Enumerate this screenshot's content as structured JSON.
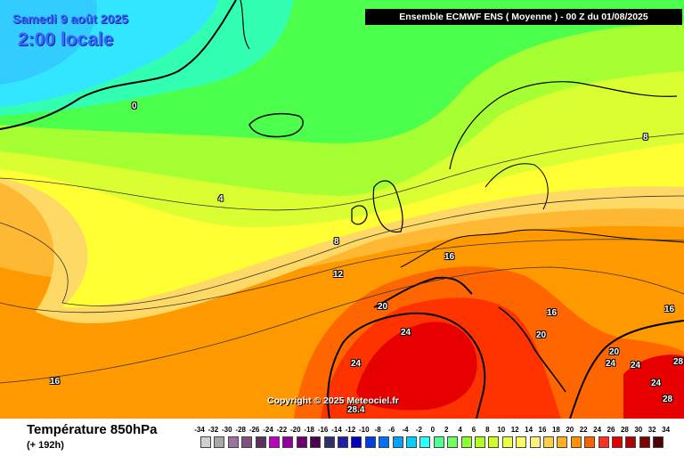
{
  "header": {
    "date": "Samedi 9 août 2025",
    "local_time": "2:00 locale",
    "model_run": "Ensemble ECMWF ENS  ( Moyenne )  -  00 Z du 01/08/2025"
  },
  "copyright": "Copyright © 2025 Meteociel.fr",
  "footer": {
    "variable": "Température 850hPa",
    "lead_time": "(+ 192h)"
  },
  "isotherm_labels": [
    "0",
    "4",
    "8",
    "12",
    "16",
    "16",
    "16",
    "16",
    "20",
    "20",
    "20",
    "24",
    "24",
    "24",
    "24",
    "24",
    "28",
    "28",
    "28.4",
    "8"
  ],
  "legend": {
    "ticks": [
      "-34",
      "-32",
      "-30",
      "-28",
      "-26",
      "-24",
      "-22",
      "-20",
      "-18",
      "-16",
      "-14",
      "-12",
      "-10",
      "-8",
      "-6",
      "-4",
      "-2",
      "0",
      "2",
      "4",
      "6",
      "8",
      "10",
      "12",
      "14",
      "16",
      "18",
      "20",
      "22",
      "24",
      "26",
      "28",
      "30",
      "32",
      "34"
    ],
    "colors": [
      "#d0d0d0",
      "#a8a8a8",
      "#a070a0",
      "#805080",
      "#603060",
      "#c000c0",
      "#9000a0",
      "#700070",
      "#500050",
      "#303070",
      "#2020a0",
      "#0000c0",
      "#0040e0",
      "#0070ff",
      "#00a0ff",
      "#00d0ff",
      "#30ffff",
      "#50ff90",
      "#70ff60",
      "#90ff30",
      "#b0ff20",
      "#d0ff20",
      "#f0ff40",
      "#ffff60",
      "#fff080",
      "#ffd040",
      "#ffb020",
      "#ff9000",
      "#ff6000",
      "#ff3020",
      "#e00000",
      "#b00000",
      "#800000",
      "#500000"
    ]
  },
  "colors": {
    "cyan": "#33e6ff",
    "green": "#4cff4c",
    "lime": "#a6ff33",
    "yellow": "#ffff33",
    "orange": "#ff9900",
    "red": "#ff3300"
  }
}
